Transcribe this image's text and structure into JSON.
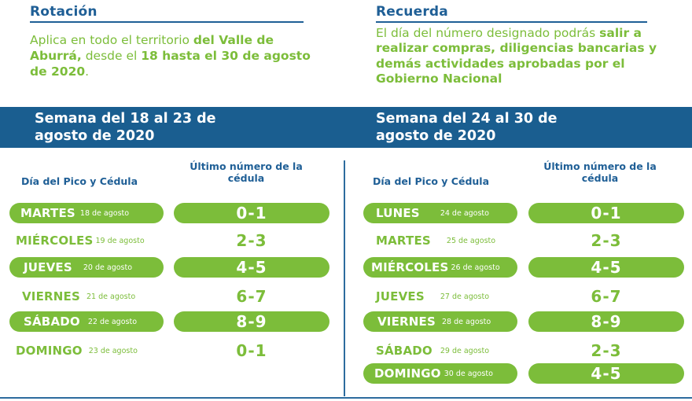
{
  "rotation": {
    "heading": "Rotación",
    "text_a": "Aplica en todo el territorio ",
    "text_b": "del Valle de Aburrá,",
    "text_c": " desde el ",
    "text_d": "18 hasta el 30 de agosto de 2020",
    "text_e": "."
  },
  "reminder": {
    "heading": "Recuerda",
    "text_a": "El día del número designado podrás ",
    "text_b": "salir a realizar compras, diligencias bancarias y demás actividades aprobadas por el Gobierno Nacional"
  },
  "colors": {
    "green": "#7cbd3a",
    "blue": "#1a5e90"
  },
  "week1": {
    "title": "Semana del 18 al 23 de agosto de 2020",
    "day_header": "Día del Pico y Cédula",
    "num_header": "Último número de la cédula",
    "rows": [
      {
        "day": "MARTES",
        "date": "18 de agosto",
        "digits": "0-1"
      },
      {
        "day": "MIÉRCOLES",
        "date": "19 de agosto",
        "digits": "2-3"
      },
      {
        "day": "JUEVES",
        "date": "20 de agosto",
        "digits": "4-5"
      },
      {
        "day": "VIERNES",
        "date": "21 de agosto",
        "digits": "6-7"
      },
      {
        "day": "SÁBADO",
        "date": "22 de agosto",
        "digits": "8-9"
      },
      {
        "day": "DOMINGO",
        "date": "23 de agosto",
        "digits": "0-1"
      }
    ]
  },
  "week2": {
    "title": "Semana del 24 al 30 de agosto de 2020",
    "day_header": "Día del Pico y Cédula",
    "num_header": "Último número de la cédula",
    "rows": [
      {
        "day": "LUNES",
        "date": "24 de agosto",
        "digits": "0-1"
      },
      {
        "day": "MARTES",
        "date": "25 de agosto",
        "digits": "2-3"
      },
      {
        "day": "MIÉRCOLES",
        "date": "26 de agosto",
        "digits": "4-5"
      },
      {
        "day": "JUEVES",
        "date": "27 de agosto",
        "digits": "6-7"
      },
      {
        "day": "VIERNES",
        "date": "28 de agosto",
        "digits": "8-9"
      },
      {
        "day": "SÁBADO",
        "date": "29 de agosto",
        "digits": "2-3"
      },
      {
        "day": "DOMINGO",
        "date": "30 de agosto",
        "digits": "4-5"
      }
    ]
  }
}
